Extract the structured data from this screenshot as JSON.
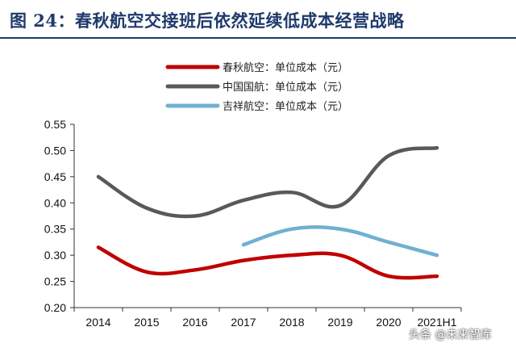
{
  "title": "图 24：春秋航空交接班后依然延续低成本经营战略",
  "watermark": "头条 @未来智库",
  "chart_data": {
    "type": "line",
    "categories": [
      "2014",
      "2015",
      "2016",
      "2017",
      "2018",
      "2019",
      "2020",
      "2021H1"
    ],
    "ylim": [
      0.2,
      0.55
    ],
    "yticks": [
      "0.55",
      "0.50",
      "0.45",
      "0.40",
      "0.35",
      "0.30",
      "0.25",
      "0.20"
    ],
    "xlabel": "",
    "ylabel": "",
    "legend_position": "top",
    "grid": false,
    "series": [
      {
        "name": "春秋航空：单位成本（元）",
        "color": "#c00000",
        "values": [
          0.315,
          0.268,
          0.272,
          0.29,
          0.3,
          0.3,
          0.26,
          0.26
        ]
      },
      {
        "name": "中国国航：单位成本（元）",
        "color": "#595959",
        "values": [
          0.45,
          0.39,
          0.375,
          0.405,
          0.42,
          0.395,
          0.49,
          0.505
        ]
      },
      {
        "name": "吉祥航空：单位成本（元）",
        "color": "#6fb0d2",
        "values": [
          null,
          null,
          null,
          0.32,
          0.35,
          0.35,
          0.325,
          0.3
        ]
      }
    ]
  }
}
